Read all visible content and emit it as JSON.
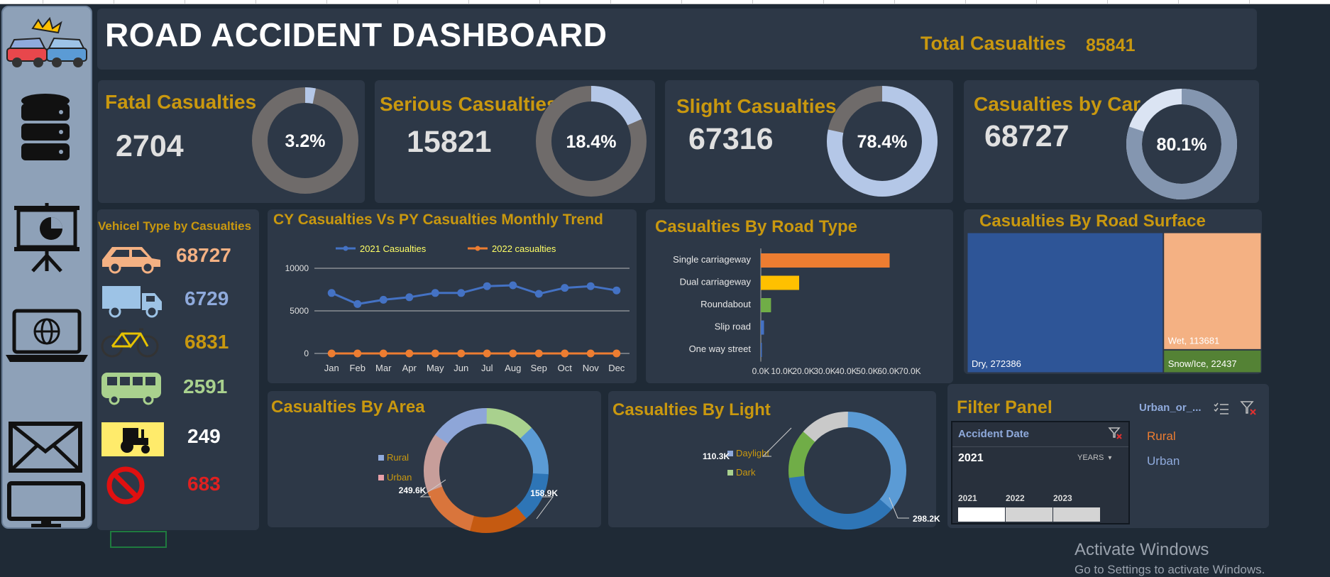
{
  "header": {
    "title": "ROAD ACCIDENT DASHBOARD",
    "total_label": "Total Casualties",
    "total_value": "85841"
  },
  "kpis": [
    {
      "label": "Fatal Casualties",
      "value": "2704",
      "pct_text": "3.2%",
      "pct": 3.2,
      "ring_color": "#6f6b6a",
      "seg_color": "#b4c7e7"
    },
    {
      "label": "Serious Casualties",
      "value": "15821",
      "pct_text": "18.4%",
      "pct": 18.4,
      "ring_color": "#6f6b6a",
      "seg_color": "#b4c7e7"
    },
    {
      "label": "Slight Casualties",
      "value": "67316",
      "pct_text": "78.4%",
      "pct": 78.4,
      "ring_color": "#6f6b6a",
      "seg_color": "#b4c7e7"
    },
    {
      "label": "Casualties by Car",
      "value": "68727",
      "pct_text": "80.1%",
      "pct": 80.1,
      "ring_color": "#dbe4f3",
      "seg_color": "#8496b0"
    }
  ],
  "vehicles": {
    "title": "Vehicel Type by Casualties",
    "items": [
      {
        "icon": "car-icon",
        "value": "68727",
        "color": "#f4b183"
      },
      {
        "icon": "truck-icon",
        "value": "6729",
        "color": "#8faadc"
      },
      {
        "icon": "bicycle-icon",
        "value": "6831",
        "color": "#c9980f"
      },
      {
        "icon": "bus-icon",
        "value": "2591",
        "color": "#a9d18e"
      },
      {
        "icon": "tractor-icon",
        "value": "249",
        "color": "#ffffff"
      },
      {
        "icon": "no-entry-icon",
        "value": "683",
        "color": "#e02020"
      }
    ]
  },
  "chart_data": [
    {
      "type": "line",
      "title": "CY Casualties Vs PY Casualties Monthly Trend",
      "categories": [
        "Jan",
        "Feb",
        "Mar",
        "Apr",
        "May",
        "Jun",
        "Jul",
        "Aug",
        "Sep",
        "Oct",
        "Nov",
        "Dec"
      ],
      "series": [
        {
          "name": "2021 Casualties",
          "color": "#4472c4",
          "values": [
            7100,
            5800,
            6300,
            6600,
            7100,
            7100,
            7900,
            8000,
            7000,
            7700,
            7900,
            7400
          ]
        },
        {
          "name": "2022 casualties",
          "color": "#ed7d31",
          "values": [
            0,
            0,
            0,
            0,
            0,
            0,
            0,
            0,
            0,
            0,
            0,
            0
          ]
        }
      ],
      "yticks": [
        "10000",
        "5000",
        "0"
      ],
      "ylim": [
        0,
        10000
      ],
      "legend": "top"
    },
    {
      "type": "bar",
      "orientation": "horizontal",
      "title": "Casualties By Road Type",
      "categories": [
        "Single carriageway",
        "Dual carriageway",
        "Roundabout",
        "Slip road",
        "One way street"
      ],
      "values": [
        60500,
        18000,
        4800,
        1500,
        200
      ],
      "colors": [
        "#ed7d31",
        "#ffc000",
        "#70ad47",
        "#4472c4",
        "#4472c4"
      ],
      "xticks": [
        "0.0K",
        "10.0K",
        "20.0K",
        "30.0K",
        "40.0K",
        "50.0K",
        "60.0K",
        "70.0K"
      ],
      "xlim": [
        0,
        70000
      ]
    },
    {
      "type": "treemap",
      "title": "Casualties By Road Surface",
      "items": [
        {
          "label": "Dry, 272386",
          "value": 272386,
          "color": "#2e5597"
        },
        {
          "label": "Wet, 113681",
          "value": 113681,
          "color": "#f4b183"
        },
        {
          "label": "Snow/Ice, 22437",
          "value": 22437,
          "color": "#548235"
        }
      ]
    },
    {
      "type": "pie",
      "title": "Casualties By Area",
      "legend": [
        "Rural",
        "Urban"
      ],
      "slices": [
        {
          "name": "Rural",
          "value": 158.9,
          "label": "158.9K"
        },
        {
          "name": "Urban",
          "value": 249.6,
          "label": "249.6K"
        }
      ]
    },
    {
      "type": "pie",
      "title": "Casualties By Light",
      "legend": [
        "Daylight",
        "Dark"
      ],
      "slices": [
        {
          "name": "Daylight",
          "value": 298.2,
          "label": "298.2K",
          "color": "#4472c4"
        },
        {
          "name": "Dark",
          "value": 110.3,
          "label": "110.3K",
          "color": "#70ad47"
        }
      ]
    }
  ],
  "filter_panel": {
    "title": "Filter Panel",
    "slicer_title": "Accident Date",
    "selected_year": "2021",
    "level": "YEARS",
    "years": [
      "2021",
      "2022",
      "2023"
    ],
    "urban_slicer_title": "Urban_or_...",
    "urban_items": [
      "Rural",
      "Urban"
    ]
  },
  "watermark": {
    "line1": "Activate Windows",
    "line2": "Go to Settings to activate Windows."
  }
}
